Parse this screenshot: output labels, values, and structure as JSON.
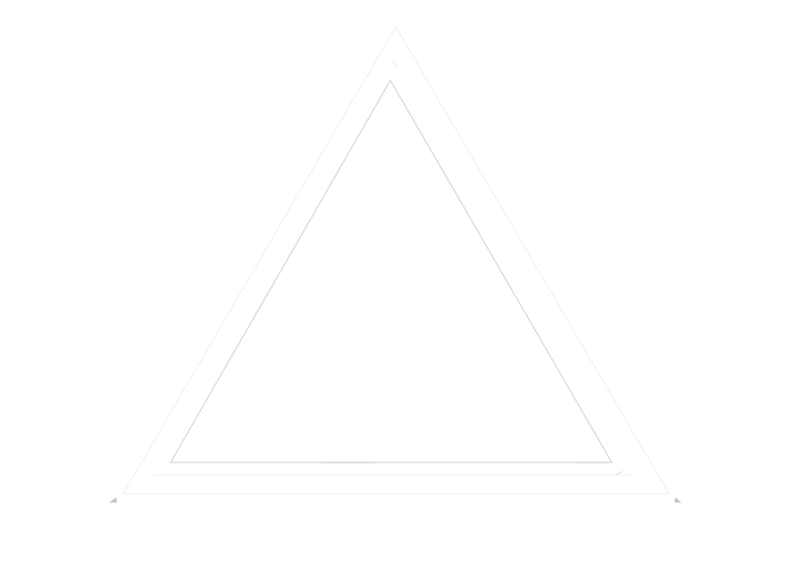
{
  "colors": {
    "background": "#ffffff",
    "outer_triangle_stroke": "#f1f1f1",
    "inner_triangle_stroke": "#c9c9c9",
    "edge_highlight": "#dcdcdc",
    "corner_mark": "#c4c4c4"
  },
  "shapes": [
    {
      "kind": "triangle",
      "role": "outer-triangle"
    },
    {
      "kind": "triangle",
      "role": "inner-triangle"
    }
  ]
}
